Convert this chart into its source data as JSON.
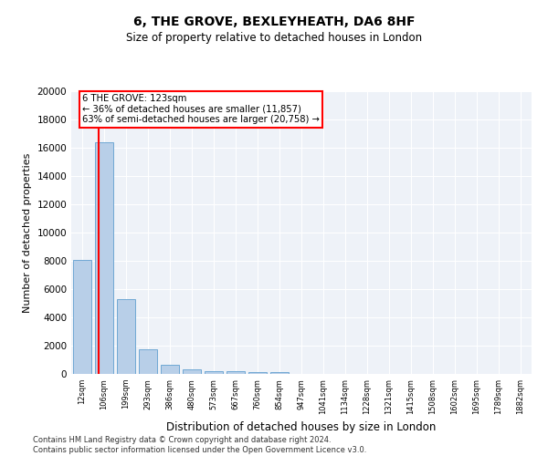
{
  "title1": "6, THE GROVE, BEXLEYHEATH, DA6 8HF",
  "title2": "Size of property relative to detached houses in London",
  "xlabel": "Distribution of detached houses by size in London",
  "ylabel": "Number of detached properties",
  "categories": [
    "12sqm",
    "106sqm",
    "199sqm",
    "293sqm",
    "386sqm",
    "480sqm",
    "573sqm",
    "667sqm",
    "760sqm",
    "854sqm",
    "947sqm",
    "1041sqm",
    "1134sqm",
    "1228sqm",
    "1321sqm",
    "1415sqm",
    "1508sqm",
    "1602sqm",
    "1695sqm",
    "1789sqm",
    "1882sqm"
  ],
  "bar_values": [
    8050,
    16400,
    5300,
    1750,
    650,
    320,
    210,
    190,
    160,
    110,
    0,
    0,
    0,
    0,
    0,
    0,
    0,
    0,
    0,
    0,
    0
  ],
  "bar_color": "#b8cfe8",
  "bar_edge_color": "#6fa8d4",
  "property_label": "6 THE GROVE: 123sqm",
  "annotation_line1": "← 36% of detached houses are smaller (11,857)",
  "annotation_line2": "63% of semi-detached houses are larger (20,758) →",
  "ylim": [
    0,
    20000
  ],
  "yticks": [
    0,
    2000,
    4000,
    6000,
    8000,
    10000,
    12000,
    14000,
    16000,
    18000,
    20000
  ],
  "footer_line1": "Contains HM Land Registry data © Crown copyright and database right 2024.",
  "footer_line2": "Contains public sector information licensed under the Open Government Licence v3.0.",
  "bg_color": "#eef2f8"
}
